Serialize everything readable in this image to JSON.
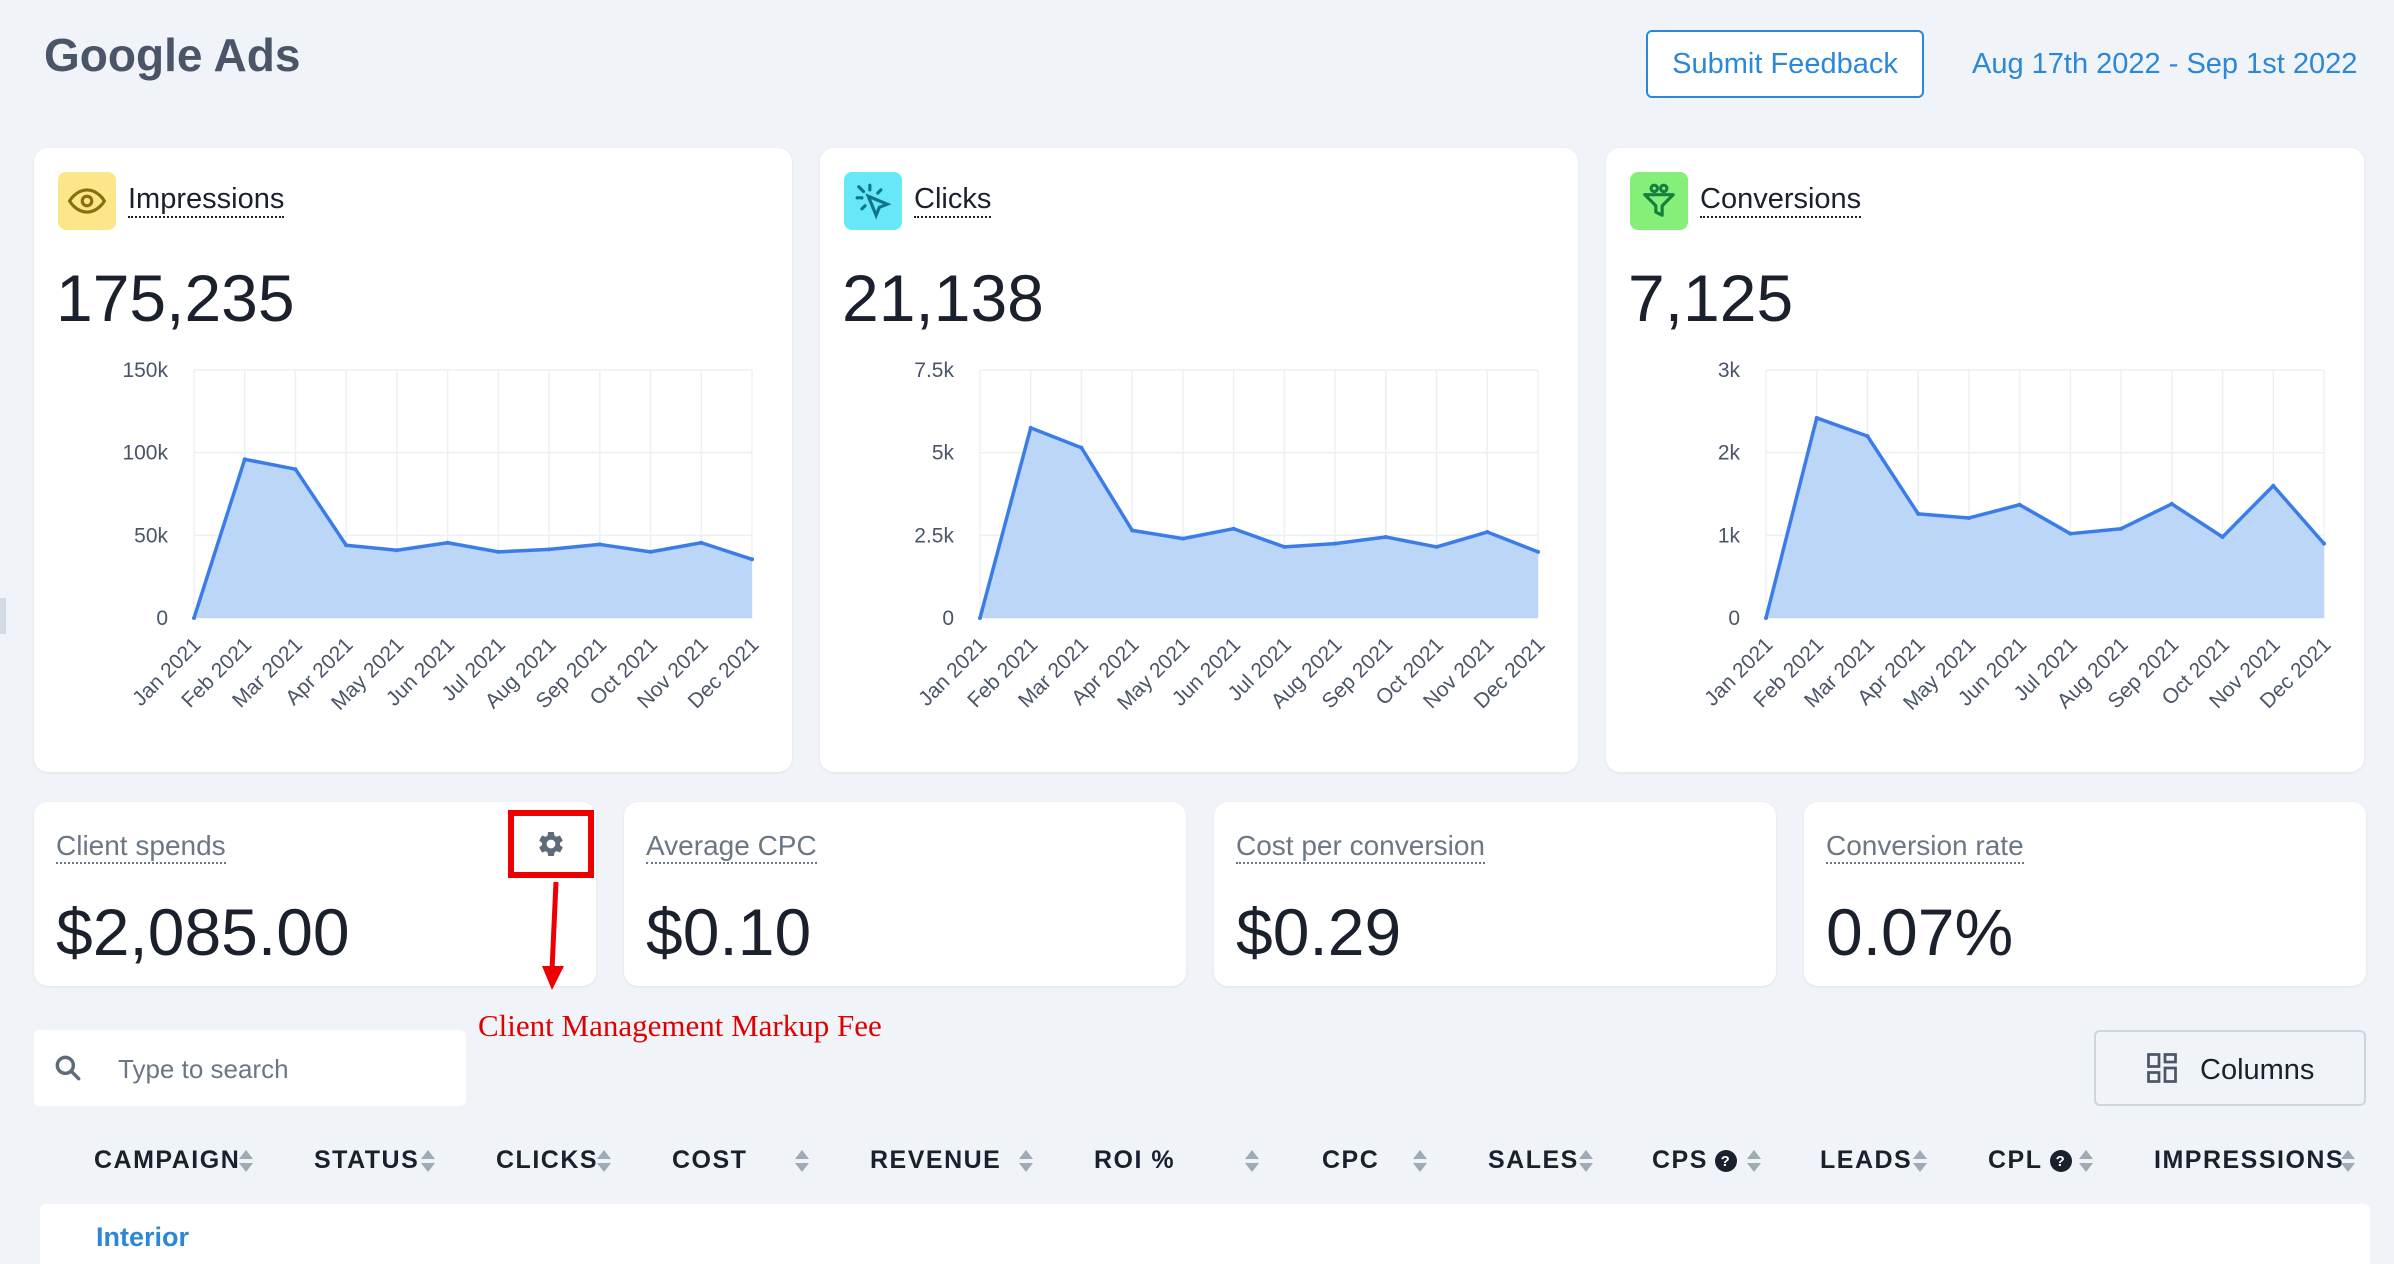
{
  "header": {
    "title": "Google Ads",
    "feedback_label": "Submit Feedback",
    "date_range": "Aug 17th 2022 - Sep 1st 2022"
  },
  "metric_cards": [
    {
      "label": "Impressions",
      "value": "175,235",
      "icon": "eye-icon",
      "icon_bg": "#fde68a",
      "icon_color": "#8a6d0f"
    },
    {
      "label": "Clicks",
      "value": "21,138",
      "icon": "cursor-click-icon",
      "icon_bg": "#67e8f9",
      "icon_color": "#0e7490"
    },
    {
      "label": "Conversions",
      "value": "7,125",
      "icon": "funnel-icon",
      "icon_bg": "#86ef7a",
      "icon_color": "#15803d"
    }
  ],
  "chart_data": [
    {
      "type": "area",
      "x": [
        "Jan 2021",
        "Feb 2021",
        "Mar 2021",
        "Apr 2021",
        "May 2021",
        "Jun 2021",
        "Jul 2021",
        "Aug 2021",
        "Sep 2021",
        "Oct 2021",
        "Nov 2021",
        "Dec 2021"
      ],
      "values": [
        0,
        96000,
        90000,
        44000,
        41000,
        45500,
        40000,
        41500,
        44500,
        40000,
        45500,
        35500
      ],
      "yticks": [
        "0",
        "50k",
        "100k",
        "150k"
      ],
      "ylim": [
        0,
        150000
      ],
      "grid": true,
      "color": "#3b7de8"
    },
    {
      "type": "area",
      "x": [
        "Jan 2021",
        "Feb 2021",
        "Mar 2021",
        "Apr 2021",
        "May 2021",
        "Jun 2021",
        "Jul 2021",
        "Aug 2021",
        "Sep 2021",
        "Oct 2021",
        "Nov 2021",
        "Dec 2021"
      ],
      "values": [
        0,
        5750,
        5150,
        2650,
        2400,
        2700,
        2150,
        2250,
        2450,
        2150,
        2600,
        2000
      ],
      "yticks": [
        "0",
        "2.5k",
        "5k",
        "7.5k"
      ],
      "ylim": [
        0,
        7500
      ],
      "grid": true,
      "color": "#3b7de8"
    },
    {
      "type": "area",
      "x": [
        "Jan 2021",
        "Feb 2021",
        "Mar 2021",
        "Apr 2021",
        "May 2021",
        "Jun 2021",
        "Jul 2021",
        "Aug 2021",
        "Sep 2021",
        "Oct 2021",
        "Nov 2021",
        "Dec 2021"
      ],
      "values": [
        0,
        2420,
        2200,
        1260,
        1210,
        1370,
        1020,
        1080,
        1380,
        980,
        1600,
        900
      ],
      "yticks": [
        "0",
        "1k",
        "2k",
        "3k"
      ],
      "ylim": [
        0,
        3000
      ],
      "grid": true,
      "color": "#3b7de8"
    }
  ],
  "stats": [
    {
      "label": "Client spends",
      "value": "$2,085.00"
    },
    {
      "label": "Average CPC",
      "value": "$0.10"
    },
    {
      "label": "Cost per conversion",
      "value": "$0.29"
    },
    {
      "label": "Conversion rate",
      "value": "0.07%"
    }
  ],
  "annotation": {
    "text": "Client Management Markup Fee",
    "color": "#e00000"
  },
  "search": {
    "placeholder": "Type to search"
  },
  "columns_button": {
    "label": "Columns"
  },
  "table": {
    "columns": [
      "CAMPAIGN",
      "STATUS",
      "CLICKS",
      "COST",
      "REVENUE",
      "ROI %",
      "CPC",
      "SALES",
      "CPS",
      "LEADS",
      "CPL",
      "IMPRESSIONS"
    ],
    "first_row_campaign": "Interior"
  },
  "colors": {
    "accent": "#2b87d8",
    "background": "#f0f4f8",
    "series": "#3b7de8",
    "series_fill": "#bcd6f8"
  }
}
